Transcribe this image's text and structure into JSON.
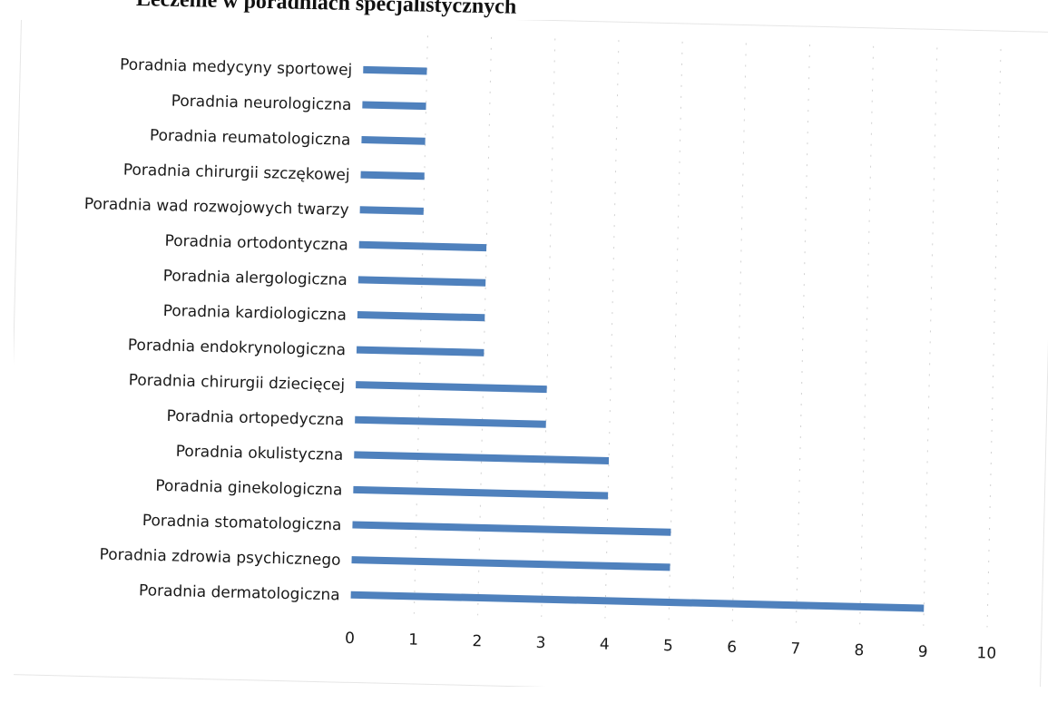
{
  "title": "Leczenie w poradniach specjalistycznych",
  "chart_data": {
    "type": "bar",
    "orientation": "horizontal",
    "title": "Leczenie w poradniach specjalistycznych",
    "xlabel": "",
    "ylabel": "",
    "xlim": [
      0,
      10
    ],
    "x_ticks": [
      "0",
      "1",
      "2",
      "3",
      "4",
      "5",
      "6",
      "7",
      "8",
      "9",
      "10"
    ],
    "grid": true,
    "legend": "none",
    "color": "#4f81bd",
    "categories": [
      "Poradnia medycyny sportowej",
      "Poradnia neurologiczna",
      "Poradnia reumatologiczna",
      "Poradnia chirurgii szczękowej",
      "Poradnia wad rozwojowych twarzy",
      "Poradnia ortodontyczna",
      "Poradnia alergologiczna",
      "Poradnia kardiologiczna",
      "Poradnia endokrynologiczna",
      "Poradnia chirurgii dziecięcej",
      "Poradnia ortopedyczna",
      "Poradnia okulistyczna",
      "Poradnia ginekologiczna",
      "Poradnia stomatologiczna",
      "Poradnia zdrowia psychicznego",
      "Poradnia dermatologiczna"
    ],
    "values": [
      1,
      1,
      1,
      1,
      1,
      2,
      2,
      2,
      2,
      3,
      3,
      4,
      4,
      5,
      5,
      9
    ]
  }
}
